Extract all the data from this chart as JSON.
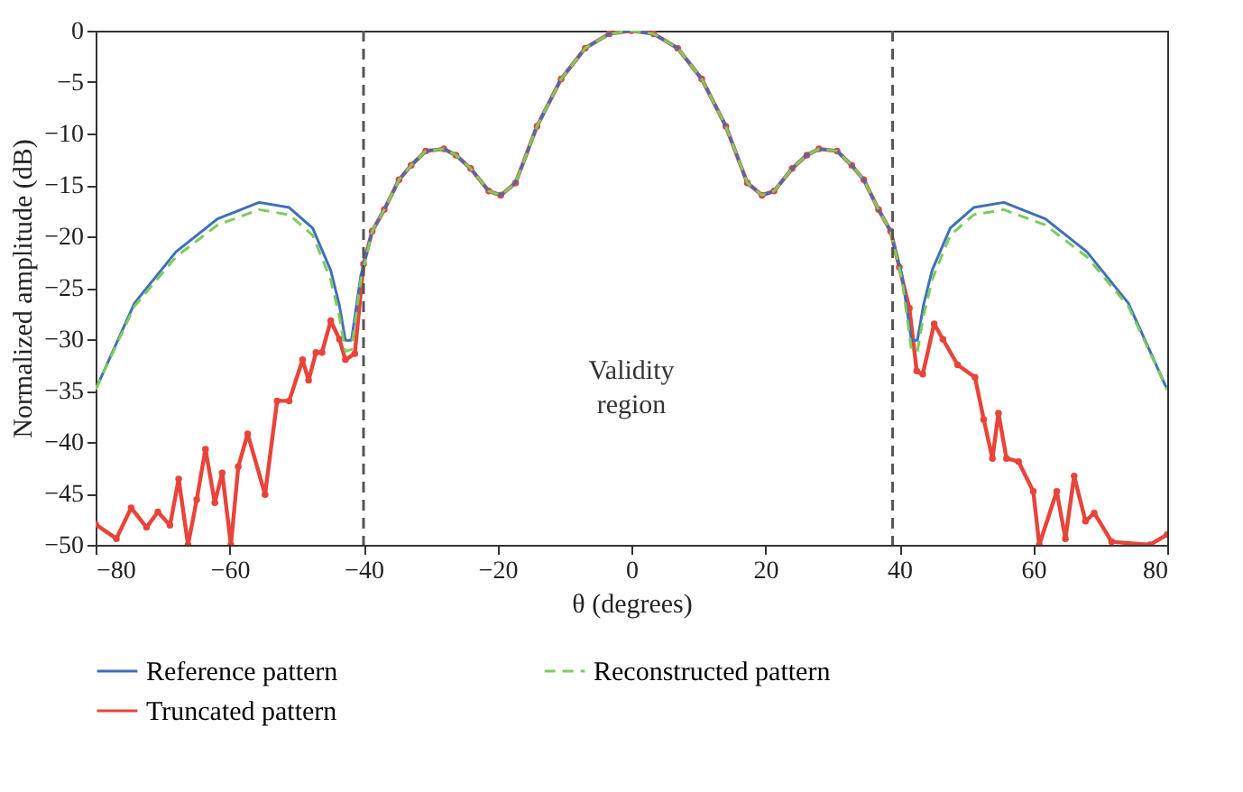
{
  "chart_data": {
    "type": "line",
    "xlabel": "θ (degrees)",
    "ylabel": "Normalized amplitude (dB)",
    "xlim": [
      -80,
      80
    ],
    "ylim": [
      -50,
      0
    ],
    "xticks": [
      {
        "value": -80,
        "label": "−80"
      },
      {
        "value": -60,
        "label": "−60"
      },
      {
        "value": -40,
        "label": "−40"
      },
      {
        "value": -20,
        "label": "−20"
      },
      0,
      20,
      40,
      60,
      80
    ],
    "yticks": [
      {
        "value": -50,
        "label": "−50"
      },
      {
        "value": -45,
        "label": "−45"
      },
      {
        "value": -40,
        "label": "−40"
      },
      {
        "value": -35,
        "label": "−35"
      },
      {
        "value": -30,
        "label": "−30"
      },
      {
        "value": -25,
        "label": "−25"
      },
      {
        "value": -20,
        "label": "−20"
      },
      {
        "value": -15,
        "label": "−15"
      },
      {
        "value": -10,
        "label": "−10"
      },
      {
        "value": -5,
        "label": "−5"
      },
      0
    ],
    "grid": false,
    "legend": "bottom",
    "series": [
      {
        "name": "Reference pattern",
        "color": "#3f6fb8",
        "line_style": "solid",
        "marker": "none",
        "x": [
          -80,
          -74.2,
          -68,
          -61.8,
          -55.6,
          -51.1,
          -47.6,
          -44.9,
          -43.6,
          -42.7,
          -41.8,
          -40.4,
          -38.7,
          -36.9,
          -34.7,
          -32.9,
          -30.7,
          -28,
          -26.2,
          -24,
          -21.3,
          -19.5,
          -17.3,
          -14.1,
          -10.5,
          -6.9,
          -3.3,
          0,
          3.3,
          6.9,
          10.5,
          14.1,
          17.3,
          19.5,
          21.3,
          24,
          26.2,
          28,
          30.7,
          32.9,
          34.7,
          36.9,
          38.7,
          40.4,
          41.8,
          42.7,
          43.6,
          44.9,
          47.6,
          51.1,
          55.6,
          61.8,
          68,
          74.2,
          80
        ],
        "values": [
          -34.9,
          -26.5,
          -21.5,
          -18.3,
          -16.7,
          -17.2,
          -19.2,
          -23.3,
          -26.7,
          -30.1,
          -30.1,
          -23.8,
          -19.5,
          -17.4,
          -14.5,
          -13.1,
          -11.7,
          -11.5,
          -12.1,
          -13.4,
          -15.6,
          -16,
          -14.8,
          -9.3,
          -4.7,
          -1.7,
          -0.3,
          0,
          -0.3,
          -1.7,
          -4.7,
          -9.3,
          -14.8,
          -16,
          -15.6,
          -13.4,
          -12.1,
          -11.5,
          -11.7,
          -13.1,
          -14.5,
          -17.4,
          -19.5,
          -23.8,
          -30.1,
          -30.1,
          -26.7,
          -23.3,
          -19.2,
          -17.2,
          -16.7,
          -18.3,
          -21.5,
          -26.5,
          -34.9
        ]
      },
      {
        "name": "Reconstructed pattern",
        "color": "#7ccc5c",
        "line_style": "dashed",
        "marker": "none",
        "x": [
          -80,
          -74.2,
          -68,
          -61.8,
          -55.6,
          -51.1,
          -47.6,
          -44.9,
          -43.6,
          -42.7,
          -41.8,
          -40.4,
          -38.7,
          -36.9,
          -34.7,
          -32.9,
          -30.7,
          -28,
          -26.2,
          -24,
          -21.3,
          -19.5,
          -17.3,
          -14.1,
          -10.5,
          -6.9,
          -3.3,
          0,
          3.3,
          6.9,
          10.5,
          14.1,
          17.3,
          19.5,
          21.3,
          24,
          26.2,
          28,
          30.7,
          32.9,
          34.7,
          36.9,
          38.7,
          40.4,
          41.8,
          42.7,
          43.6,
          44.9,
          47.6,
          51.1,
          55.6,
          61.8,
          68,
          74.2,
          80
        ],
        "values": [
          -34.9,
          -26.8,
          -22,
          -18.9,
          -17.4,
          -17.9,
          -19.9,
          -24.2,
          -27.8,
          -31.2,
          -31,
          -24.2,
          -19.5,
          -17.4,
          -14.5,
          -13.1,
          -11.7,
          -11.5,
          -12.1,
          -13.4,
          -15.6,
          -16,
          -14.8,
          -9.3,
          -4.7,
          -1.7,
          -0.3,
          0,
          -0.3,
          -1.7,
          -4.7,
          -9.3,
          -14.8,
          -16,
          -15.6,
          -13.4,
          -12.1,
          -11.5,
          -11.7,
          -13.1,
          -14.5,
          -17.4,
          -19.5,
          -24.2,
          -31,
          -31.2,
          -27.8,
          -24.2,
          -19.9,
          -17.9,
          -17.4,
          -18.9,
          -22,
          -26.8,
          -34.9
        ]
      },
      {
        "name": "Truncated pattern",
        "color": "#e8443a",
        "line_style": "solid",
        "marker": "circle",
        "x": [
          -80,
          -76.9,
          -74.7,
          -72.4,
          -70.7,
          -68.9,
          -67.6,
          -66.2,
          -64.9,
          -63.6,
          -62.2,
          -61.1,
          -59.8,
          -58.7,
          -57.3,
          -54.7,
          -52.9,
          -51.1,
          -49.1,
          -48.2,
          -47.1,
          -46.2,
          -44.9,
          -43.6,
          -42.7,
          -41.3,
          -40,
          -38.7,
          -36.9,
          -34.7,
          -32.9,
          -30.7,
          -28,
          -26.2,
          -24,
          -21.3,
          -19.5,
          -17.3,
          -14.1,
          -10.5,
          -6.9,
          -3.3,
          0,
          3.3,
          6.9,
          10.5,
          14.1,
          17.3,
          19.5,
          21.3,
          24,
          26.2,
          28,
          30.7,
          32.9,
          34.7,
          36.9,
          38.7,
          40,
          41.5,
          42.6,
          43.5,
          45.2,
          46.5,
          48.7,
          51.3,
          52.6,
          53.9,
          54.8,
          56,
          57.8,
          60,
          60.9,
          63.5,
          64.8,
          66.1,
          67.8,
          69.1,
          71.7,
          77.4,
          80
        ],
        "values": [
          -48,
          -49.4,
          -46.4,
          -48.3,
          -46.8,
          -48.1,
          -43.6,
          -50,
          -45.6,
          -40.7,
          -45.9,
          -43,
          -50,
          -42.4,
          -39.2,
          -45.1,
          -36,
          -36,
          -32,
          -34,
          -31.3,
          -31.3,
          -28.2,
          -30,
          -32,
          -31.4,
          -22.7,
          -19.5,
          -17.4,
          -14.5,
          -13.1,
          -11.7,
          -11.5,
          -12.1,
          -13.4,
          -15.6,
          -16,
          -14.8,
          -9.3,
          -4.7,
          -1.7,
          -0.3,
          0,
          -0.3,
          -1.7,
          -4.7,
          -9.3,
          -14.8,
          -16,
          -15.6,
          -13.4,
          -12.1,
          -11.5,
          -11.7,
          -13.1,
          -14.5,
          -17.4,
          -19.5,
          -23,
          -27,
          -33.1,
          -33.4,
          -28.5,
          -30,
          -32.5,
          -33.7,
          -37.8,
          -41.6,
          -37.2,
          -41.6,
          -41.9,
          -44.8,
          -50,
          -44.8,
          -49.4,
          -43.3,
          -47.7,
          -46.9,
          -49.7,
          -50,
          -49
        ]
      }
    ],
    "ref_lines": [
      {
        "axis": "x",
        "value": -40,
        "color": "#555555",
        "line_style": "dashed"
      },
      {
        "axis": "x",
        "value": 39,
        "color": "#555555",
        "line_style": "dashed"
      }
    ],
    "annotations": [
      "Validity region"
    ]
  }
}
